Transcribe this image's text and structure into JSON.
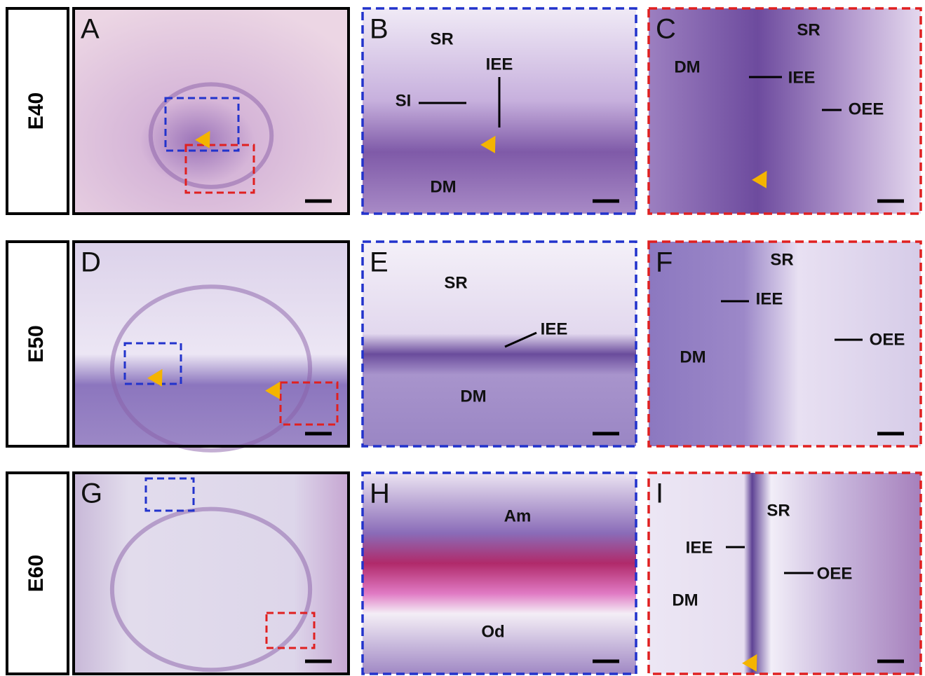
{
  "rows": [
    {
      "label": "E40",
      "panels": [
        {
          "letter": "A"
        },
        {
          "letter": "B",
          "labels": [
            "SR",
            "IEE",
            "SI",
            "DM"
          ]
        },
        {
          "letter": "C",
          "labels": [
            "SR",
            "DM",
            "IEE",
            "OEE"
          ]
        }
      ]
    },
    {
      "label": "E50",
      "panels": [
        {
          "letter": "D"
        },
        {
          "letter": "E",
          "labels": [
            "SR",
            "IEE",
            "DM"
          ]
        },
        {
          "letter": "F",
          "labels": [
            "SR",
            "IEE",
            "DM",
            "OEE"
          ]
        }
      ]
    },
    {
      "label": "E60",
      "panels": [
        {
          "letter": "G"
        },
        {
          "letter": "H",
          "labels": [
            "Am",
            "Od"
          ]
        },
        {
          "letter": "I",
          "labels": [
            "SR",
            "IEE",
            "DM",
            "OEE"
          ]
        }
      ]
    }
  ]
}
